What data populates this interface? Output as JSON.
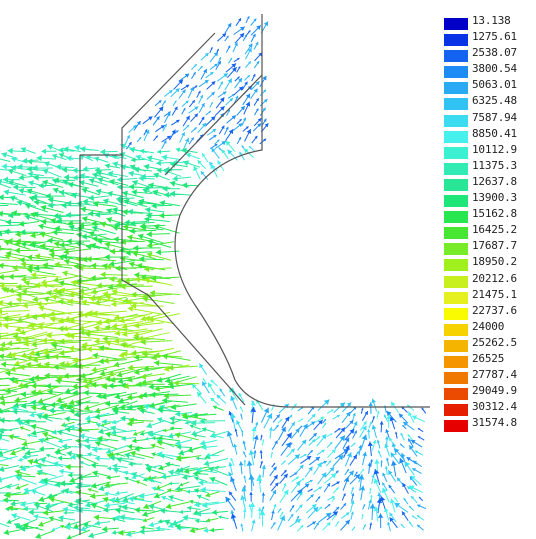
{
  "legend": {
    "levels": [
      {
        "label": "13.138",
        "color": "#0000c8"
      },
      {
        "label": "1275.61",
        "color": "#0a32e6"
      },
      {
        "label": "2538.07",
        "color": "#1462f0"
      },
      {
        "label": "3800.54",
        "color": "#1e8cf5"
      },
      {
        "label": "5063.01",
        "color": "#28aaf5"
      },
      {
        "label": "6325.48",
        "color": "#32c3f5"
      },
      {
        "label": "7587.94",
        "color": "#3cdcf0"
      },
      {
        "label": "8850.41",
        "color": "#46f0ec"
      },
      {
        "label": "10112.9",
        "color": "#3cf0d2"
      },
      {
        "label": "11375.3",
        "color": "#32ebb4"
      },
      {
        "label": "12637.8",
        "color": "#28e696"
      },
      {
        "label": "13900.3",
        "color": "#1ee678"
      },
      {
        "label": "15162.8",
        "color": "#28e650"
      },
      {
        "label": "16425.2",
        "color": "#46e632"
      },
      {
        "label": "17687.7",
        "color": "#78eb28"
      },
      {
        "label": "18950.2",
        "color": "#a0f01e"
      },
      {
        "label": "20212.6",
        "color": "#c8f01e"
      },
      {
        "label": "21475.1",
        "color": "#e6f01e"
      },
      {
        "label": "22737.6",
        "color": "#fafa00"
      },
      {
        "label": "24000",
        "color": "#f5d200"
      },
      {
        "label": "25262.5",
        "color": "#f5b400"
      },
      {
        "label": "26525",
        "color": "#f59600"
      },
      {
        "label": "27787.4",
        "color": "#f07800"
      },
      {
        "label": "29049.9",
        "color": "#eb4b00"
      },
      {
        "label": "30312.4",
        "color": "#e61e00"
      },
      {
        "label": "31574.8",
        "color": "#e60000"
      }
    ]
  },
  "plot": {
    "outline_color": "#555555",
    "arrow_palette_low": "#1e6ee6",
    "arrow_palette_mid": "#3cdcf0",
    "arrow_palette_high": "#8ce632"
  }
}
